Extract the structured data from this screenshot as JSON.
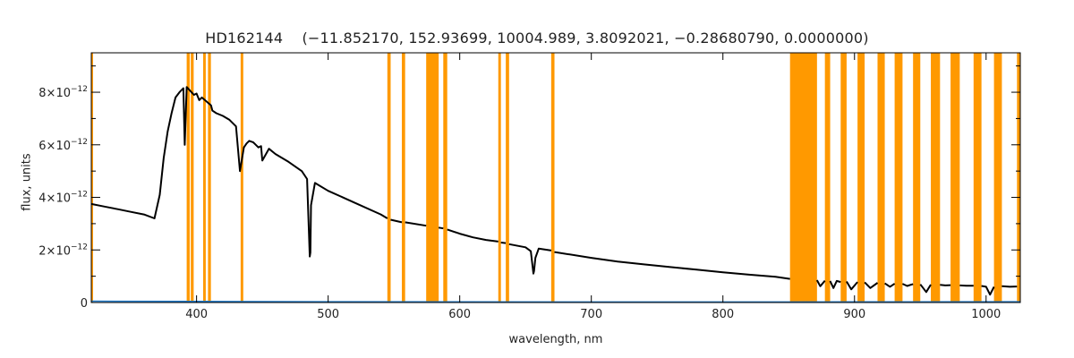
{
  "chart_data": {
    "type": "line",
    "title": "HD162144    (−11.852170, 152.93699, 10004.989, 3.8092021, −0.28680790, 0.0000000)",
    "xlabel": "wavelength, nm",
    "ylabel": "flux, units",
    "xlim": [
      320,
      1026
    ],
    "ylim": [
      0,
      9.5e-12
    ],
    "x_ticks": [
      400,
      500,
      600,
      700,
      800,
      900,
      1000
    ],
    "x_tick_labels": [
      "400",
      "500",
      "600",
      "700",
      "800",
      "900",
      "1000"
    ],
    "y_ticks": [
      0,
      2e-12,
      4e-12,
      6e-12,
      8e-12
    ],
    "y_tick_labels": [
      {
        "mantissa": "0",
        "exponent": ""
      },
      {
        "mantissa": "2×10",
        "exponent": "−12"
      },
      {
        "mantissa": "4×10",
        "exponent": "−12"
      },
      {
        "mantissa": "6×10",
        "exponent": "−12"
      },
      {
        "mantissa": "8×10",
        "exponent": "−12"
      }
    ],
    "colors": {
      "spectrum": "#000000",
      "error": "#1f77c4",
      "mask": "#ff9900"
    },
    "masked_regions": [
      [
        320,
        321
      ],
      [
        392.5,
        394.8
      ],
      [
        395.6,
        397.8
      ],
      [
        405,
        407
      ],
      [
        408.7,
        410.9
      ],
      [
        433.5,
        435.5
      ],
      [
        545,
        547.5
      ],
      [
        556,
        558.5
      ],
      [
        574.5,
        584
      ],
      [
        587.5,
        590.5
      ],
      [
        629.3,
        631.3
      ],
      [
        635,
        637.5
      ],
      [
        669.5,
        672
      ],
      [
        851,
        871.5
      ],
      [
        877.5,
        881.5
      ],
      [
        889.5,
        894
      ],
      [
        902.3,
        907.7
      ],
      [
        917.5,
        923
      ],
      [
        930.5,
        936.5
      ],
      [
        944.5,
        950
      ],
      [
        958,
        965
      ],
      [
        973,
        980
      ],
      [
        990.5,
        996.5
      ],
      [
        1006,
        1012
      ],
      [
        1023.5,
        1026
      ]
    ],
    "series": [
      {
        "x": [
          320,
          330,
          340,
          350,
          360,
          368,
          372,
          375,
          378,
          381,
          384,
          387,
          390,
          391,
          392.5,
          398,
          400,
          402,
          404,
          411,
          412,
          415,
          420,
          425,
          430,
          433,
          436,
          438,
          440,
          443,
          445,
          447,
          449,
          450,
          455,
          460,
          470,
          480,
          484,
          486,
          486.5,
          487,
          490,
          500,
          520,
          540,
          545
        ],
        "y": [
          3.75e-12,
          3.65e-12,
          3.55e-12,
          3.45e-12,
          3.35e-12,
          3.2e-12,
          4.1e-12,
          5.5e-12,
          6.5e-12,
          7.2e-12,
          7.8e-12,
          8e-12,
          8.15e-12,
          6e-12,
          8.2e-12,
          7.9e-12,
          7.95e-12,
          7.7e-12,
          7.8e-12,
          7.5e-12,
          7.3e-12,
          7.2e-12,
          7.1e-12,
          6.95e-12,
          6.7e-12,
          5e-12,
          5.9e-12,
          6.05e-12,
          6.15e-12,
          6.1e-12,
          6e-12,
          5.9e-12,
          5.95e-12,
          5.4e-12,
          5.85e-12,
          5.65e-12,
          5.35e-12,
          5e-12,
          4.7e-12,
          1.75e-12,
          1.9e-12,
          3.7e-12,
          4.55e-12,
          4.25e-12,
          3.8e-12,
          3.35e-12,
          3.2e-12
        ]
      },
      {
        "x": [
          547.5,
          556
        ],
        "y": [
          3.15e-12,
          3.05e-12
        ]
      },
      {
        "x": [
          558.5,
          574.5
        ],
        "y": [
          3.05e-12,
          2.92e-12
        ]
      },
      {
        "x": [
          584,
          587.5
        ],
        "y": [
          2.85e-12,
          2.82e-12
        ]
      },
      {
        "x": [
          590.5,
          600,
          610,
          620,
          629.3
        ],
        "y": [
          2.78e-12,
          2.62e-12,
          2.48e-12,
          2.38e-12,
          2.32e-12
        ]
      },
      {
        "x": [
          631.3,
          635
        ],
        "y": [
          2.28e-12,
          2.26e-12
        ]
      },
      {
        "x": [
          637.5,
          650,
          654,
          656,
          656.5,
          657.5,
          660,
          669.5
        ],
        "y": [
          2.22e-12,
          2.1e-12,
          1.95e-12,
          1.1e-12,
          1.2e-12,
          1.7e-12,
          2.05e-12,
          1.98e-12
        ]
      },
      {
        "x": [
          672,
          700,
          720,
          740,
          760,
          780,
          800,
          820,
          840,
          851
        ],
        "y": [
          1.92e-12,
          1.7e-12,
          1.56e-12,
          1.45e-12,
          1.35e-12,
          1.25e-12,
          1.15e-12,
          1.06e-12,
          9.8e-13,
          9e-13
        ]
      },
      {
        "x": [
          871.5,
          874,
          877.5
        ],
        "y": [
          8.5e-13,
          6.2e-13,
          8.3e-13
        ]
      },
      {
        "x": [
          881.5,
          884,
          886.5,
          889.5
        ],
        "y": [
          8.2e-13,
          5.5e-13,
          8.2e-13,
          7.8e-13
        ]
      },
      {
        "x": [
          894,
          897.5,
          902.3
        ],
        "y": [
          8e-13,
          5e-13,
          7.8e-13
        ]
      },
      {
        "x": [
          907.7,
          912,
          917.5
        ],
        "y": [
          7.7e-13,
          5.5e-13,
          7.5e-13
        ]
      },
      {
        "x": [
          923,
          927,
          930.5
        ],
        "y": [
          7.3e-13,
          6e-13,
          7.2e-13
        ]
      },
      {
        "x": [
          936.5,
          940,
          944.5
        ],
        "y": [
          7.1e-13,
          6.3e-13,
          7e-13
        ]
      },
      {
        "x": [
          950,
          954.5,
          958
        ],
        "y": [
          6.9e-13,
          4e-13,
          6.8e-13
        ]
      },
      {
        "x": [
          965,
          969,
          973
        ],
        "y": [
          6.7e-13,
          6.5e-13,
          6.6e-13
        ]
      },
      {
        "x": [
          980,
          985,
          990.5
        ],
        "y": [
          6.5e-13,
          6.4e-13,
          6.4e-13
        ]
      },
      {
        "x": [
          996.5,
          1000,
          1003,
          1006
        ],
        "y": [
          6.3e-13,
          6e-13,
          3e-13,
          6e-13
        ]
      },
      {
        "x": [
          1012,
          1018,
          1023.5
        ],
        "y": [
          6.2e-13,
          6e-13,
          6.1e-13
        ]
      }
    ],
    "error_series": {
      "x": [
        320,
        400,
        500,
        600,
        700,
        800,
        900,
        1026
      ],
      "y": [
        5e-14,
        4e-14,
        3e-14,
        2.5e-14,
        2e-14,
        2e-14,
        2.5e-14,
        3e-14
      ]
    }
  }
}
